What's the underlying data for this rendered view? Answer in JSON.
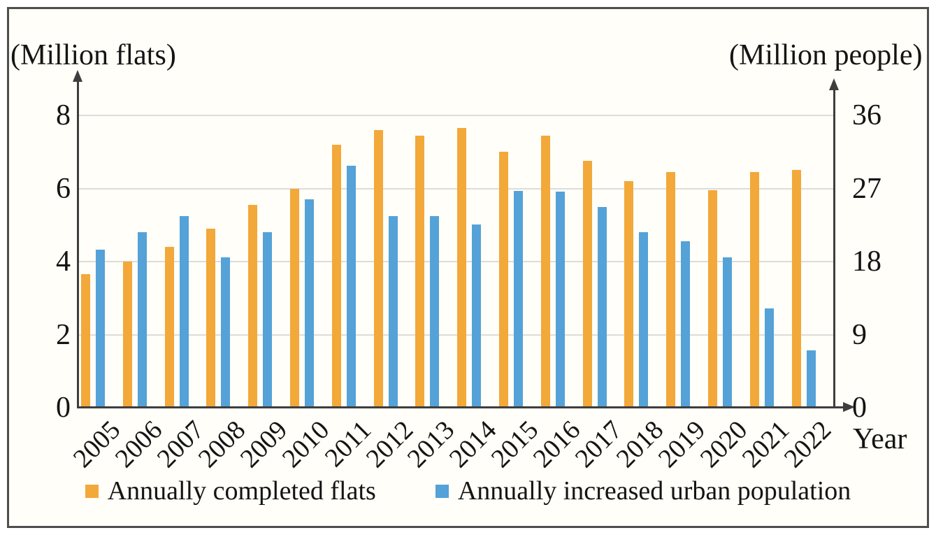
{
  "colors": {
    "flats_bar": "#f3a83a",
    "population_bar": "#54a2d8",
    "axis": "#3e3e3e",
    "gridline": "#dcdcdc",
    "background": "#fffef8",
    "frame_border": "#4e4e4e",
    "text": "#141414"
  },
  "chart_data": {
    "type": "bar",
    "title": "",
    "categories": [
      "2005",
      "2006",
      "2007",
      "2008",
      "2009",
      "2010",
      "2011",
      "2012",
      "2013",
      "2014",
      "2015",
      "2016",
      "2017",
      "2018",
      "2019",
      "2020",
      "2021",
      "2022"
    ],
    "series": [
      {
        "name": "Annually completed flats",
        "axis": "left",
        "unit": "Million flats",
        "color_key": "flats_bar",
        "values": [
          3.65,
          4.0,
          4.4,
          4.9,
          5.55,
          6.0,
          7.2,
          7.6,
          7.45,
          7.65,
          7.0,
          7.45,
          6.75,
          6.2,
          6.45,
          5.95,
          6.45,
          6.5
        ]
      },
      {
        "name": "Annually increased urban population",
        "axis": "right",
        "unit": "Million people",
        "color_key": "population_bar",
        "values": [
          19.5,
          21.6,
          23.6,
          18.5,
          21.6,
          25.7,
          29.8,
          23.6,
          23.6,
          22.6,
          26.7,
          26.6,
          24.7,
          21.6,
          20.5,
          18.5,
          12.2,
          7.1
        ]
      }
    ],
    "left_axis": {
      "label": "(Million flats)",
      "ticks": [
        0,
        2,
        4,
        6,
        8
      ],
      "range": [
        0,
        8
      ]
    },
    "right_axis": {
      "label": "(Million people)",
      "ticks": [
        0,
        9,
        18,
        27,
        36
      ],
      "range": [
        0,
        36
      ]
    },
    "x_axis": {
      "label": "Year"
    },
    "grid": true,
    "legend_position": "bottom"
  }
}
